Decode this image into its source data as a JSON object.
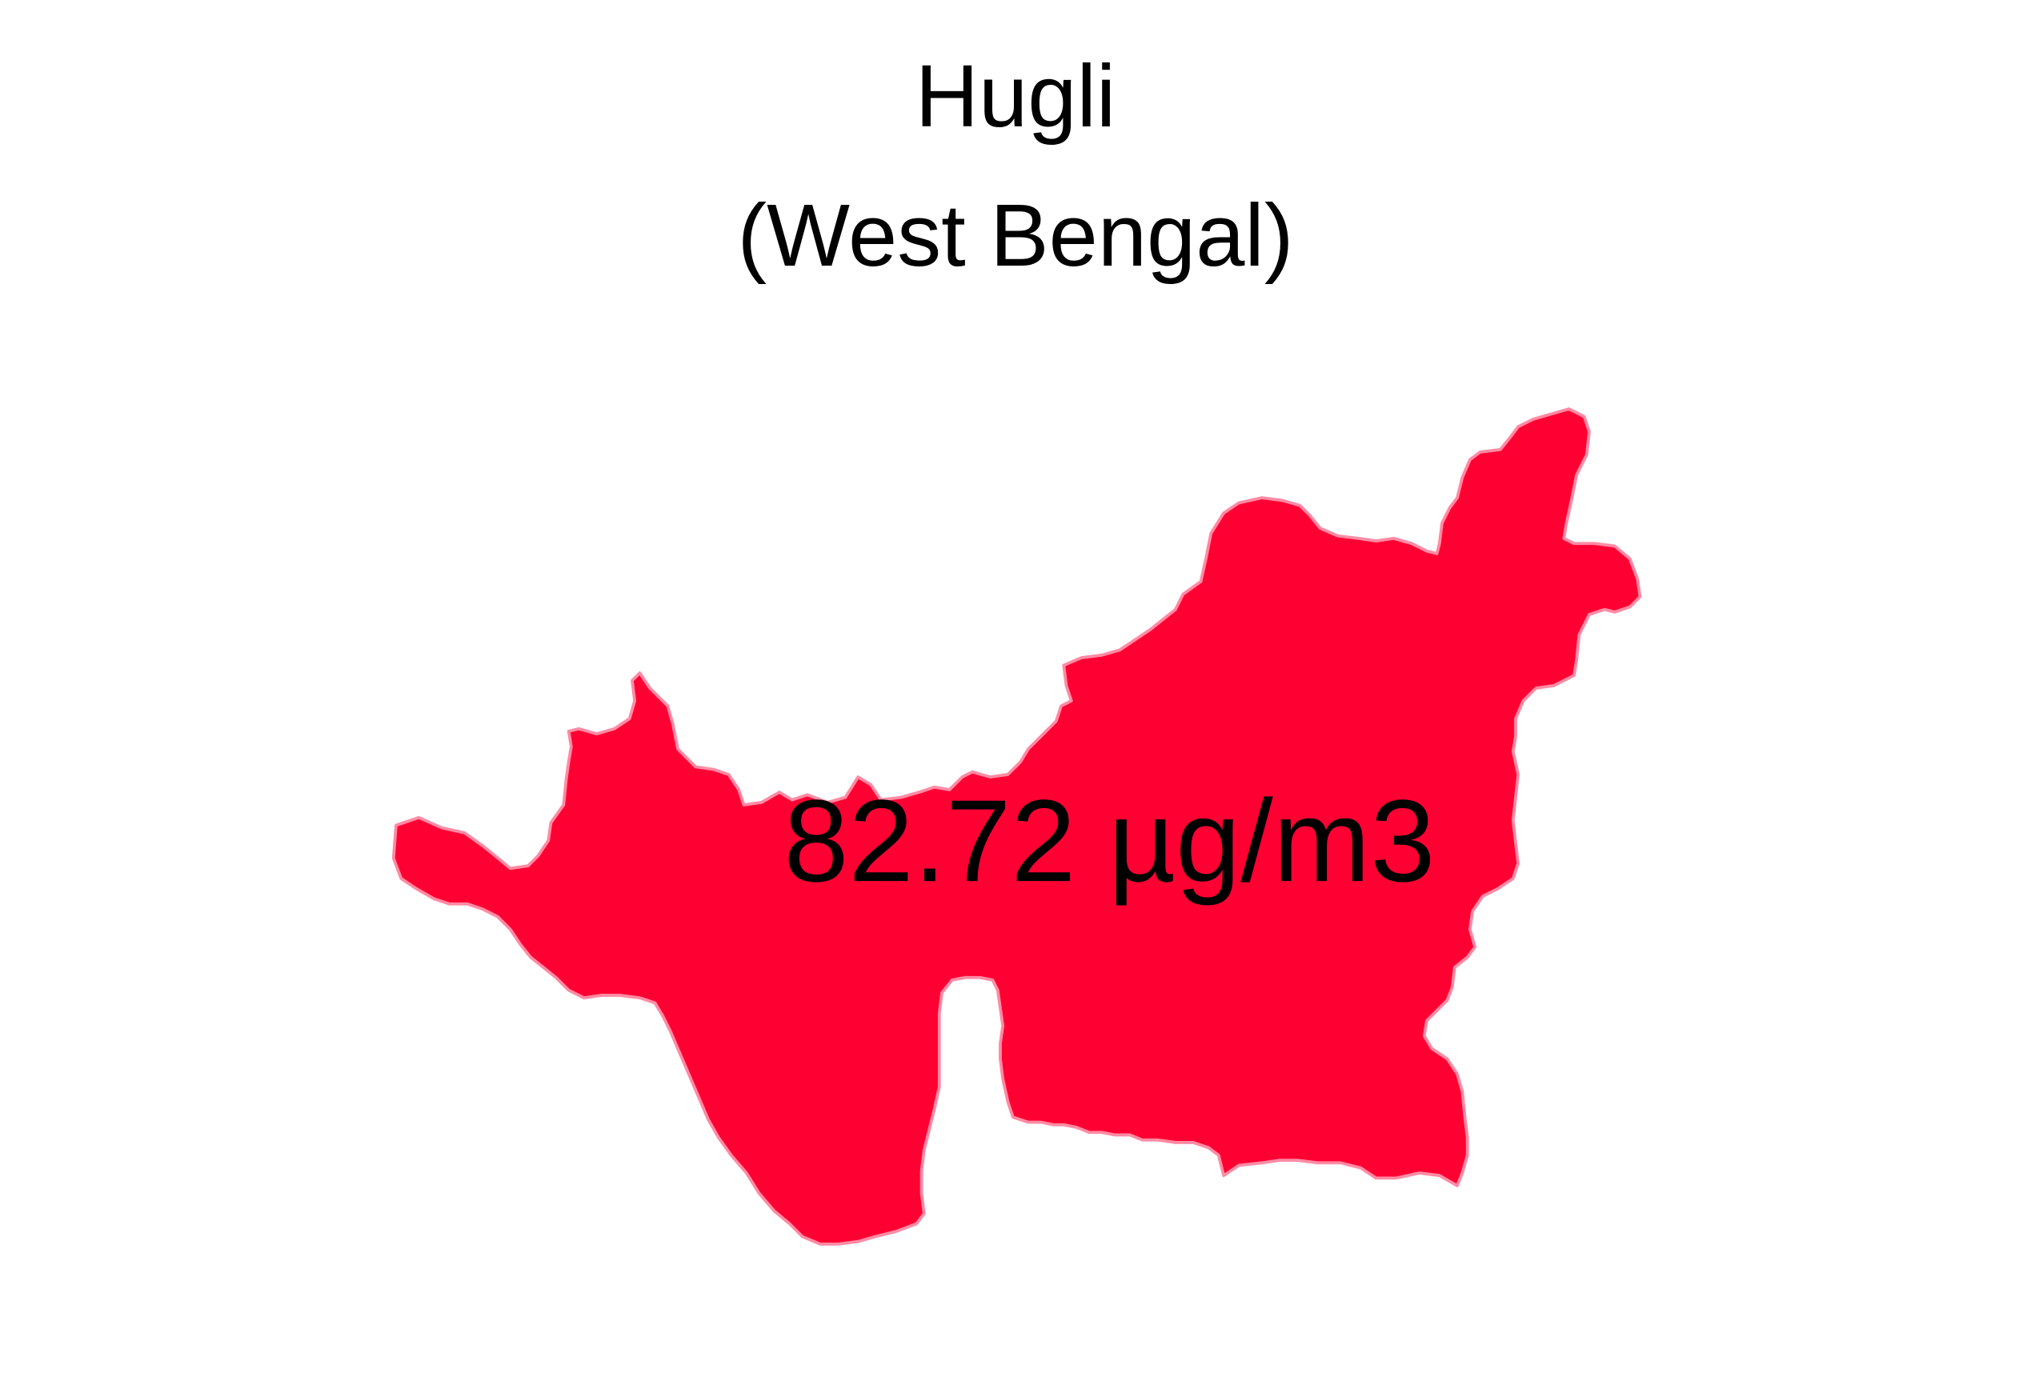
{
  "map": {
    "title": "Hugli",
    "subtitle": "(West Bengal)",
    "district": "Hugli",
    "value_label": "82.72 µg/m3",
    "colors": {
      "fill": "#ff0033",
      "border": "#ff8aa3",
      "background": "#ffffff",
      "text": "#000000"
    }
  }
}
